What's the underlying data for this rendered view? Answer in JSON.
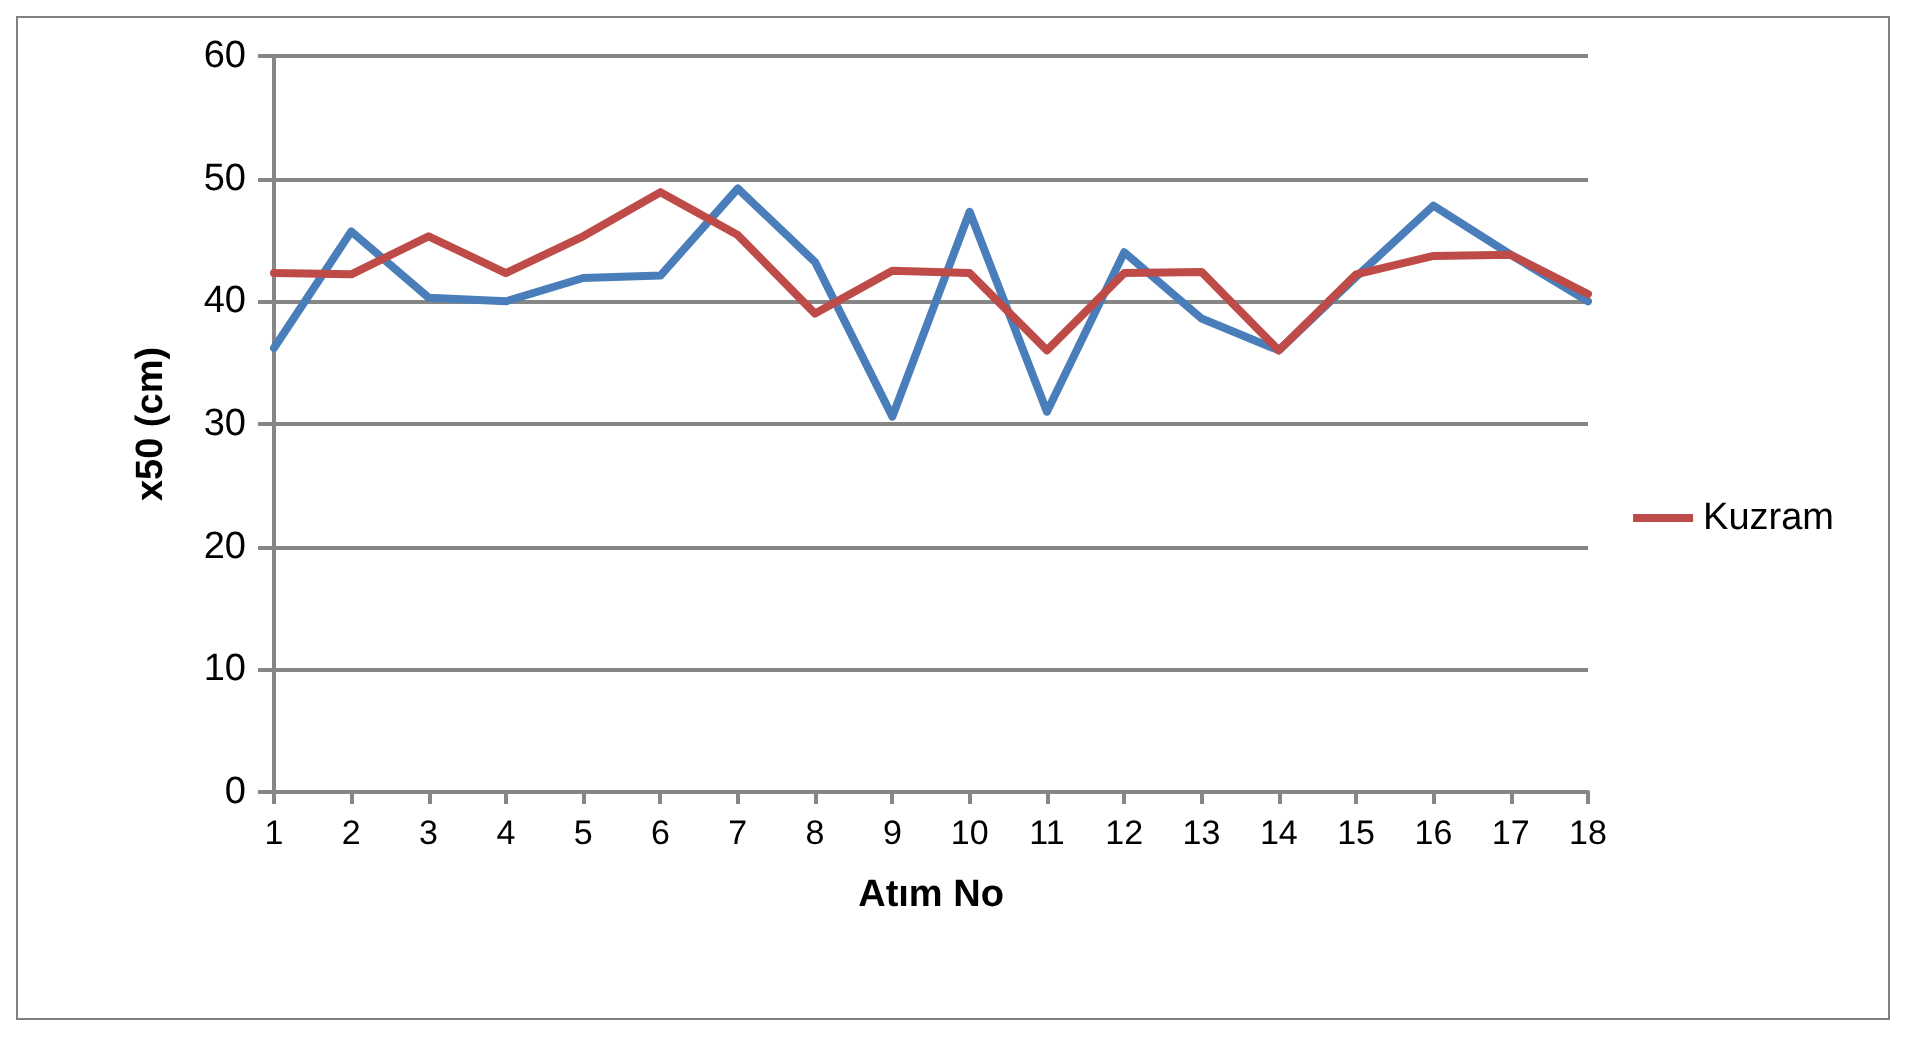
{
  "chart_data": {
    "type": "line",
    "xlabel": "Atım No",
    "ylabel": "x50 (cm)",
    "x": [
      1,
      2,
      3,
      4,
      5,
      6,
      7,
      8,
      9,
      10,
      11,
      12,
      13,
      14,
      15,
      16,
      17,
      18
    ],
    "xlim": [
      1,
      18
    ],
    "xticks": [
      1,
      2,
      3,
      4,
      5,
      6,
      7,
      8,
      9,
      10,
      11,
      12,
      13,
      14,
      15,
      16,
      17,
      18
    ],
    "series": [
      {
        "color": "#4a7ebb",
        "values": [
          36.2,
          45.7,
          40.3,
          40.0,
          41.9,
          42.1,
          49.2,
          43.2,
          30.6,
          47.3,
          31.0,
          44.0,
          38.6,
          36.0,
          42.0,
          47.8,
          43.8,
          40.0
        ]
      },
      {
        "name": "Kuzram",
        "color": "#be4b48",
        "values": [
          42.3,
          42.2,
          45.3,
          42.3,
          45.3,
          48.9,
          45.4,
          39.0,
          42.5,
          42.3,
          36.0,
          42.3,
          42.4,
          36.0,
          42.2,
          43.7,
          43.8,
          40.6
        ]
      }
    ],
    "ylim": [
      0,
      60
    ],
    "yticks": [
      0,
      10,
      20,
      30,
      40,
      50,
      60
    ],
    "grid": "y",
    "legend": "right",
    "marker": "none",
    "line_style": "solid"
  }
}
